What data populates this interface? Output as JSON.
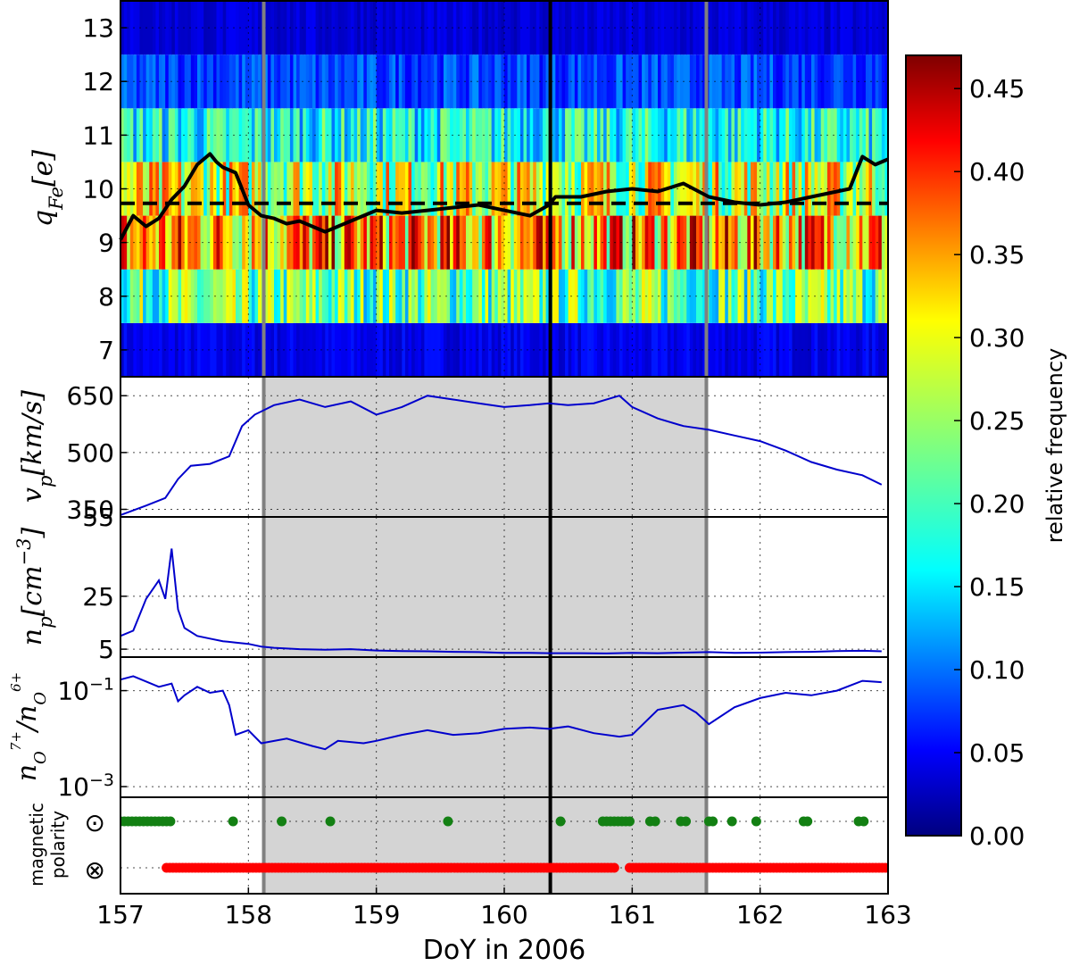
{
  "chart_data": [
    {
      "type": "heatmap",
      "ylabel": "q_Fe[e]",
      "ylabel_parts": {
        "sym": "q",
        "sub": "Fe",
        "unit": "[e]"
      },
      "x_range": [
        157,
        163
      ],
      "y_range": [
        6.5,
        13.5
      ],
      "yticks": [
        "7",
        "8",
        "9",
        "10",
        "11",
        "12",
        "13"
      ],
      "charge_states": [
        7,
        8,
        9,
        10,
        11,
        12,
        13
      ],
      "row_mean_frequency": [
        0.05,
        0.22,
        0.34,
        0.28,
        0.18,
        0.09,
        0.04
      ],
      "colorscale": "jet",
      "colorbar": {
        "label": "relative frequency",
        "range": [
          0.0,
          0.47
        ],
        "ticks": [
          "0.00",
          "0.05",
          "0.10",
          "0.15",
          "0.20",
          "0.25",
          "0.30",
          "0.35",
          "0.40",
          "0.45"
        ]
      },
      "mean_charge_line": {
        "x": [
          157.0,
          157.1,
          157.2,
          157.3,
          157.4,
          157.5,
          157.6,
          157.7,
          157.75,
          157.8,
          157.9,
          158.0,
          158.1,
          158.2,
          158.3,
          158.4,
          158.5,
          158.6,
          158.7,
          158.8,
          158.9,
          159.0,
          159.2,
          159.4,
          159.6,
          159.8,
          160.0,
          160.2,
          160.35,
          160.4,
          160.6,
          160.8,
          161.0,
          161.2,
          161.4,
          161.6,
          161.8,
          162.0,
          162.2,
          162.4,
          162.6,
          162.7,
          162.8,
          162.9,
          163.0
        ],
        "y": [
          9.05,
          9.5,
          9.3,
          9.45,
          9.8,
          10.05,
          10.45,
          10.65,
          10.5,
          10.4,
          10.3,
          9.7,
          9.5,
          9.45,
          9.35,
          9.4,
          9.3,
          9.2,
          9.3,
          9.4,
          9.5,
          9.6,
          9.55,
          9.6,
          9.65,
          9.7,
          9.6,
          9.5,
          9.7,
          9.85,
          9.85,
          9.95,
          10.0,
          9.95,
          10.1,
          9.85,
          9.75,
          9.7,
          9.75,
          9.85,
          9.95,
          10.0,
          10.6,
          10.45,
          10.55
        ],
        "color": "#000000"
      },
      "reference_level": 9.73
    },
    {
      "type": "line",
      "ylabel": "v_p[km/s]",
      "ylabel_parts": {
        "sym": "v",
        "sub": "p",
        "unit": "[km/s]"
      },
      "yticks": [
        "350",
        "500",
        "650"
      ],
      "ytick_values": [
        350,
        500,
        650
      ],
      "ylim": [
        330,
        700
      ],
      "x": [
        157.0,
        157.2,
        157.35,
        157.45,
        157.55,
        157.7,
        157.85,
        157.95,
        158.05,
        158.2,
        158.4,
        158.6,
        158.8,
        159.0,
        159.2,
        159.4,
        159.6,
        159.8,
        160.0,
        160.2,
        160.35,
        160.5,
        160.7,
        160.9,
        161.0,
        161.2,
        161.4,
        161.6,
        161.8,
        162.0,
        162.2,
        162.4,
        162.6,
        162.8,
        162.95
      ],
      "y": [
        335,
        360,
        380,
        430,
        465,
        470,
        490,
        570,
        600,
        625,
        640,
        620,
        635,
        600,
        620,
        650,
        640,
        630,
        620,
        625,
        630,
        625,
        630,
        650,
        620,
        590,
        570,
        560,
        545,
        530,
        505,
        475,
        455,
        440,
        415
      ],
      "color": "#0000cc"
    },
    {
      "type": "line",
      "ylabel": "n_p[cm^-3]",
      "ylabel_parts": {
        "sym": "n",
        "sub": "p",
        "unit": "[cm",
        "sup": "−3",
        "close": "]"
      },
      "yticks": [
        "5",
        "25",
        "55"
      ],
      "ytick_values": [
        5,
        25,
        55
      ],
      "ylim": [
        2,
        55
      ],
      "x": [
        157.0,
        157.1,
        157.15,
        157.2,
        157.3,
        157.35,
        157.4,
        157.45,
        157.5,
        157.6,
        157.7,
        157.8,
        157.9,
        158.0,
        158.1,
        158.2,
        158.4,
        158.6,
        158.8,
        159.0,
        159.2,
        159.4,
        159.6,
        159.8,
        160.0,
        160.2,
        160.35,
        160.6,
        160.8,
        161.0,
        161.2,
        161.4,
        161.6,
        161.8,
        162.0,
        162.2,
        162.4,
        162.6,
        162.8,
        162.95
      ],
      "y": [
        10,
        12,
        18,
        24,
        31,
        24,
        43,
        20,
        13,
        10,
        9,
        8,
        7.5,
        7,
        6,
        5.5,
        5,
        4.8,
        5,
        4.5,
        4.3,
        4.2,
        4.0,
        3.9,
        3.6,
        3.6,
        3.5,
        3.5,
        3.4,
        3.6,
        3.5,
        3.7,
        3.9,
        3.6,
        3.7,
        3.9,
        4.0,
        4.3,
        4.4,
        4.2
      ],
      "color": "#0000cc"
    },
    {
      "type": "line",
      "ylabel": "n_O7+/n_O6+",
      "ylabel_parts": {
        "sym": "n",
        "sub": "O",
        "subsup": "7+",
        "sep": "/",
        "sym2": "n",
        "sub2": "O",
        "subsup2": "6+"
      },
      "yscale": "log",
      "yticks": [
        "10^-1",
        "10^-3"
      ],
      "ytick_parts": [
        {
          "base": "10",
          "exp": "−1"
        },
        {
          "base": "10",
          "exp": "−3"
        }
      ],
      "ytick_values": [
        0.1,
        0.001
      ],
      "ylim": [
        0.0006,
        0.5
      ],
      "x": [
        157.0,
        157.1,
        157.3,
        157.4,
        157.45,
        157.5,
        157.6,
        157.7,
        157.8,
        157.85,
        157.9,
        158.0,
        158.1,
        158.3,
        158.5,
        158.6,
        158.7,
        158.9,
        159.0,
        159.2,
        159.4,
        159.6,
        159.8,
        160.0,
        160.2,
        160.35,
        160.5,
        160.7,
        160.9,
        161.0,
        161.2,
        161.4,
        161.5,
        161.6,
        161.8,
        162.0,
        162.2,
        162.4,
        162.6,
        162.8,
        162.95
      ],
      "y": [
        0.17,
        0.2,
        0.12,
        0.14,
        0.06,
        0.08,
        0.12,
        0.09,
        0.1,
        0.05,
        0.012,
        0.015,
        0.008,
        0.01,
        0.007,
        0.006,
        0.009,
        0.008,
        0.009,
        0.012,
        0.015,
        0.012,
        0.013,
        0.016,
        0.017,
        0.016,
        0.018,
        0.013,
        0.011,
        0.012,
        0.04,
        0.05,
        0.035,
        0.02,
        0.045,
        0.07,
        0.09,
        0.08,
        0.1,
        0.16,
        0.15
      ],
      "color": "#0000cc"
    },
    {
      "type": "scatter",
      "ylabel": "magnetic polarity",
      "ylabel_lines": [
        "magnetic",
        "polarity"
      ],
      "ytick_symbols": [
        "⊙",
        "⊗"
      ],
      "series": [
        {
          "name": "⊙",
          "color": "#138013",
          "x": [
            157.0,
            157.03,
            157.06,
            157.09,
            157.12,
            157.15,
            157.18,
            157.21,
            157.24,
            157.27,
            157.3,
            157.33,
            157.36,
            157.39,
            157.88,
            158.26,
            158.64,
            159.56,
            160.44,
            160.77,
            160.8,
            160.83,
            160.86,
            160.89,
            160.92,
            160.95,
            160.98,
            161.14,
            161.18,
            161.38,
            161.42,
            161.6,
            161.63,
            161.78,
            161.97,
            162.34,
            162.37,
            162.77,
            162.81
          ],
          "y": [
            1,
            1,
            1,
            1,
            1,
            1,
            1,
            1,
            1,
            1,
            1,
            1,
            1,
            1,
            1,
            1,
            1,
            1,
            1,
            1,
            1,
            1,
            1,
            1,
            1,
            1,
            1,
            1,
            1,
            1,
            1,
            1,
            1,
            1,
            1,
            1,
            1,
            1,
            1
          ]
        },
        {
          "name": "⊗",
          "color": "#ff0000",
          "segments": [
            [
              157.36,
              160.86
            ],
            [
              160.98,
              163.0
            ]
          ],
          "y": 0
        }
      ]
    }
  ],
  "shared_x": {
    "xlabel": "DoY in 2006",
    "xticks": [
      "157",
      "158",
      "159",
      "160",
      "161",
      "162",
      "163"
    ],
    "xtick_values": [
      157,
      158,
      159,
      160,
      161,
      162,
      163
    ],
    "shaded_interval": [
      158.12,
      161.58
    ],
    "shade_color": "#d4d4d4",
    "boundary_lines": [
      158.12,
      161.58
    ],
    "boundary_color": "#808080",
    "center_line": 160.36,
    "center_color": "#000000"
  }
}
